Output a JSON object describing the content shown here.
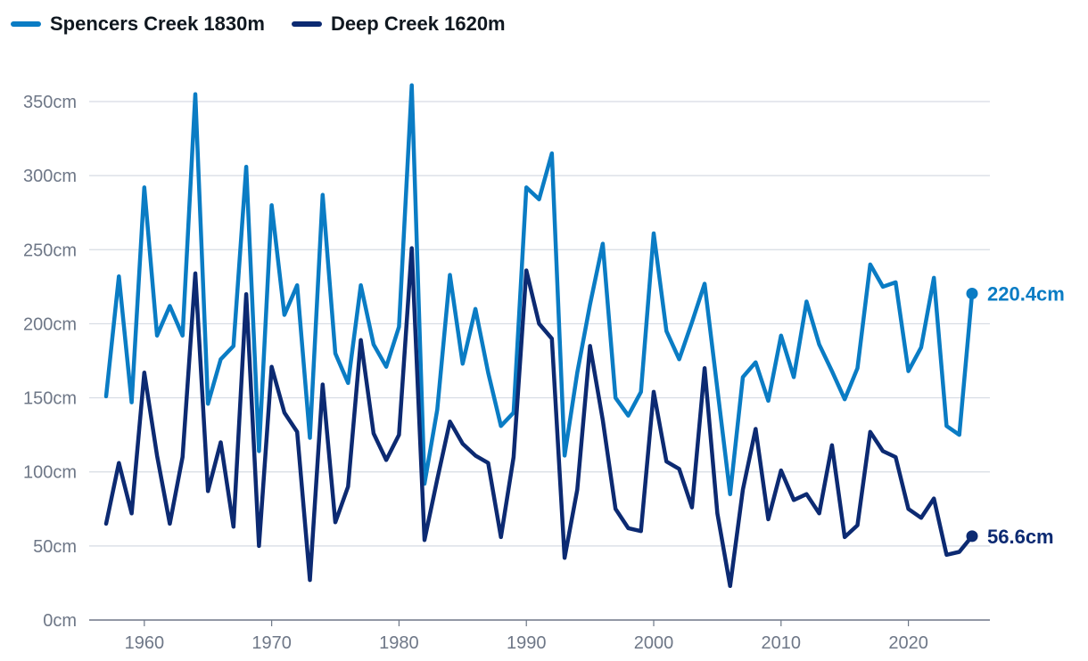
{
  "legend": {
    "items": [
      {
        "label": "Spencers Creek 1830m",
        "color": "#0a7cc4"
      },
      {
        "label": "Deep Creek 1620m",
        "color": "#0c2a72"
      }
    ]
  },
  "chart_data": {
    "type": "line",
    "title": "",
    "xlabel": "",
    "ylabel": "",
    "xlim": [
      1955,
      2027
    ],
    "ylim": [
      0,
      370
    ],
    "grid": "horizontal",
    "legend_position": "top-left",
    "y_ticks": [
      {
        "value": 0,
        "label": "0cm"
      },
      {
        "value": 50,
        "label": "50cm"
      },
      {
        "value": 100,
        "label": "100cm"
      },
      {
        "value": 150,
        "label": "150cm"
      },
      {
        "value": 200,
        "label": "200cm"
      },
      {
        "value": 250,
        "label": "250cm"
      },
      {
        "value": 300,
        "label": "300cm"
      },
      {
        "value": 350,
        "label": "350cm"
      }
    ],
    "x_ticks": [
      {
        "value": 1960,
        "label": "1960"
      },
      {
        "value": 1970,
        "label": "1970"
      },
      {
        "value": 1980,
        "label": "1980"
      },
      {
        "value": 1990,
        "label": "1990"
      },
      {
        "value": 2000,
        "label": "2000"
      },
      {
        "value": 2010,
        "label": "2010"
      },
      {
        "value": 2020,
        "label": "2020"
      }
    ],
    "x": [
      1957,
      1958,
      1959,
      1960,
      1961,
      1962,
      1963,
      1964,
      1965,
      1966,
      1967,
      1968,
      1969,
      1970,
      1971,
      1972,
      1973,
      1974,
      1975,
      1976,
      1977,
      1978,
      1979,
      1980,
      1981,
      1982,
      1983,
      1984,
      1985,
      1986,
      1987,
      1988,
      1989,
      1990,
      1991,
      1992,
      1993,
      1994,
      1995,
      1996,
      1997,
      1998,
      1999,
      2000,
      2001,
      2002,
      2003,
      2004,
      2005,
      2006,
      2007,
      2008,
      2009,
      2010,
      2011,
      2012,
      2013,
      2014,
      2015,
      2016,
      2017,
      2018,
      2019,
      2020,
      2021,
      2022,
      2023,
      2024,
      2025
    ],
    "series": [
      {
        "name": "Spencers Creek 1830m",
        "color": "#0a7cc4",
        "end_label": "220.4cm",
        "values": [
          151,
          232,
          147,
          292,
          192,
          212,
          192,
          355,
          146,
          176,
          185,
          306,
          114,
          280,
          206,
          226,
          123,
          287,
          180,
          160,
          226,
          186,
          171,
          198,
          361,
          92,
          142,
          233,
          173,
          210,
          167,
          131,
          140,
          292,
          284,
          315,
          111,
          167,
          213,
          254,
          150,
          138,
          154,
          261,
          195,
          176,
          201,
          227,
          156,
          85,
          164,
          174,
          148,
          192,
          164,
          215,
          186,
          168,
          149,
          170,
          240,
          225,
          228,
          168,
          184,
          231,
          131,
          125,
          220.4
        ]
      },
      {
        "name": "Deep Creek 1620m",
        "color": "#0c2a72",
        "end_label": "56.6cm",
        "values": [
          65,
          106,
          72,
          167,
          111,
          65,
          110,
          234,
          87,
          120,
          63,
          220,
          50,
          171,
          140,
          127,
          27,
          159,
          66,
          90,
          189,
          126,
          108,
          125,
          251,
          54,
          95,
          134,
          119,
          111,
          106,
          56,
          110,
          236,
          200,
          190,
          42,
          88,
          185,
          135,
          75,
          62,
          60,
          154,
          107,
          102,
          76,
          170,
          72,
          23,
          88,
          129,
          68,
          101,
          81,
          85,
          72,
          118,
          56,
          64,
          127,
          114,
          110,
          75,
          69,
          82,
          44,
          46,
          56.6
        ]
      }
    ]
  }
}
